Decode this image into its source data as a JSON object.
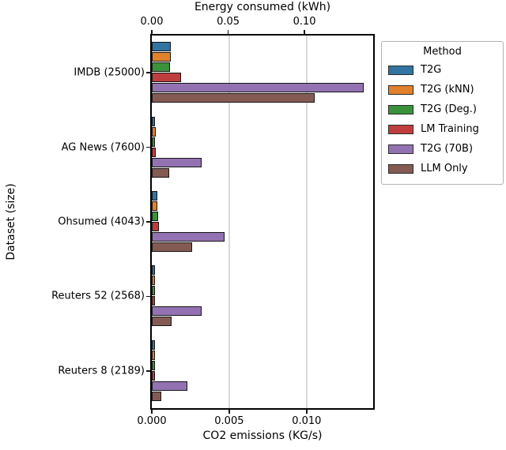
{
  "chart_data": {
    "type": "bar",
    "orientation": "horizontal",
    "xlabel_top": "Energy consumed (kWh)",
    "xlabel_bottom": "CO2 emissions (KG/s)",
    "ylabel": "Dataset (size)",
    "categories": [
      "IMDB (25000)",
      "AG News (7600)",
      "Ohsumed (4043)",
      "Reuters 52 (2568)",
      "Reuters 8 (2189)"
    ],
    "series": [
      {
        "name": "T2G",
        "color": "#3274a1",
        "values": [
          0.00124,
          0.00017,
          0.00037,
          0.00017,
          0.0001
        ]
      },
      {
        "name": "T2G (kNN)",
        "color": "#e1812c",
        "values": [
          0.00124,
          0.00028,
          0.00037,
          0.00017,
          0.0001
        ]
      },
      {
        "name": "T2G (Deg.)",
        "color": "#3a923a",
        "values": [
          0.0012,
          0.00014,
          0.00042,
          0.0002,
          0.0001
        ]
      },
      {
        "name": "LM Training",
        "color": "#c03d3e",
        "values": [
          0.00187,
          0.00026,
          0.00047,
          0.00022,
          0.00012
        ]
      },
      {
        "name": "T2G (70B)",
        "color": "#9372b2",
        "values": [
          0.0137,
          0.0032,
          0.0047,
          0.0032,
          0.0023
        ]
      },
      {
        "name": "LLM Only",
        "color": "#845b53",
        "values": [
          0.0105,
          0.0011,
          0.0026,
          0.0013,
          0.0006
        ]
      }
    ],
    "x_axis_bottom": {
      "ticks": [
        0,
        0.005,
        0.01
      ],
      "tick_labels": [
        "0.000",
        "0.005",
        "0.010"
      ],
      "min": 0,
      "max": 0.0143
    },
    "x_axis_top": {
      "ticks": [
        0,
        0.05,
        0.1
      ],
      "tick_labels": [
        "0.00",
        "0.05",
        "0.10"
      ],
      "min": 0,
      "max": 0.145
    },
    "legend": {
      "title": "Method",
      "position": "outside-upper-right"
    },
    "grid": "vertical, light gray",
    "bar_edge_color": "#151515",
    "background_color": "#ffffff"
  }
}
